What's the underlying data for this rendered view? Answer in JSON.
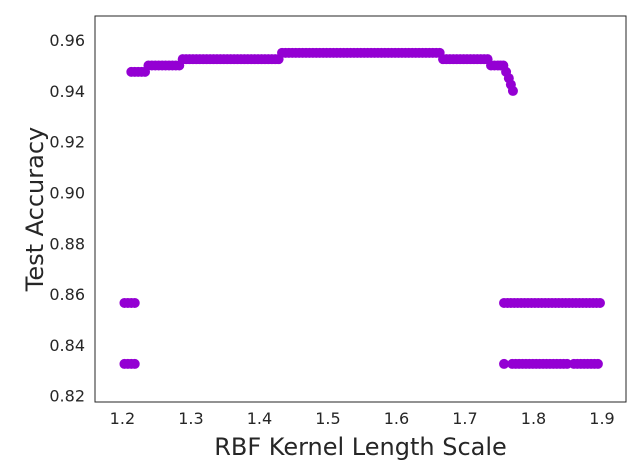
{
  "chart_data": {
    "type": "scatter",
    "title": "",
    "xlabel": "RBF Kernel Length Scale",
    "ylabel": "Test Accuracy",
    "xlim": [
      1.16,
      1.935
    ],
    "ylim": [
      0.8175,
      0.9695
    ],
    "xticks": [
      1.2,
      1.3,
      1.4,
      1.5,
      1.6,
      1.7,
      1.8,
      1.9
    ],
    "yticks": [
      0.82,
      0.84,
      0.86,
      0.88,
      0.9,
      0.92,
      0.94,
      0.96
    ],
    "xtick_labels": [
      "1.2",
      "1.3",
      "1.4",
      "1.5",
      "1.6",
      "1.7",
      "1.8",
      "1.9"
    ],
    "ytick_labels": [
      "0.82",
      "0.84",
      "0.86",
      "0.88",
      "0.90",
      "0.92",
      "0.94",
      "0.96"
    ],
    "grid": false,
    "marker_color": "#9400d3",
    "series": [
      {
        "x": [
          1.203,
          1.208,
          1.213,
          1.218,
          1.203,
          1.208,
          1.213,
          1.218,
          1.213,
          1.218,
          1.223,
          1.228,
          1.233,
          1.238,
          1.243,
          1.248,
          1.253,
          1.258,
          1.263,
          1.268,
          1.273,
          1.278,
          1.283,
          1.288,
          1.293,
          1.298,
          1.303,
          1.308,
          1.313,
          1.318,
          1.323,
          1.328,
          1.333,
          1.338,
          1.343,
          1.348,
          1.353,
          1.358,
          1.363,
          1.368,
          1.373,
          1.378,
          1.383,
          1.388,
          1.393,
          1.398,
          1.403,
          1.408,
          1.413,
          1.418,
          1.423,
          1.428,
          1.433,
          1.438,
          1.443,
          1.448,
          1.453,
          1.458,
          1.463,
          1.468,
          1.473,
          1.478,
          1.483,
          1.488,
          1.493,
          1.498,
          1.503,
          1.508,
          1.513,
          1.518,
          1.523,
          1.528,
          1.533,
          1.538,
          1.543,
          1.548,
          1.553,
          1.558,
          1.563,
          1.568,
          1.573,
          1.578,
          1.583,
          1.588,
          1.593,
          1.598,
          1.603,
          1.608,
          1.613,
          1.618,
          1.623,
          1.628,
          1.633,
          1.638,
          1.643,
          1.648,
          1.653,
          1.658,
          1.663,
          1.668,
          1.673,
          1.678,
          1.683,
          1.688,
          1.693,
          1.698,
          1.703,
          1.708,
          1.713,
          1.718,
          1.723,
          1.728,
          1.733,
          1.738,
          1.743,
          1.748,
          1.752,
          1.756,
          1.76,
          1.764,
          1.767,
          1.77,
          1.757,
          1.762,
          1.767,
          1.772,
          1.777,
          1.782,
          1.787,
          1.792,
          1.797,
          1.802,
          1.807,
          1.812,
          1.817,
          1.822,
          1.827,
          1.832,
          1.837,
          1.842,
          1.847,
          1.852,
          1.857,
          1.862,
          1.867,
          1.872,
          1.877,
          1.882,
          1.887,
          1.892,
          1.897,
          1.757,
          1.769,
          1.774,
          1.779,
          1.784,
          1.789,
          1.794,
          1.799,
          1.804,
          1.809,
          1.814,
          1.819,
          1.824,
          1.829,
          1.834,
          1.839,
          1.844,
          1.849,
          1.859,
          1.864,
          1.869,
          1.874,
          1.879,
          1.884,
          1.889,
          1.894
        ],
        "y": [
          0.8565,
          0.8565,
          0.8565,
          0.8565,
          0.8325,
          0.8325,
          0.8325,
          0.8325,
          0.9475,
          0.9475,
          0.9475,
          0.9475,
          0.9475,
          0.95,
          0.95,
          0.95,
          0.95,
          0.95,
          0.95,
          0.95,
          0.95,
          0.95,
          0.95,
          0.9525,
          0.9525,
          0.9525,
          0.9525,
          0.9525,
          0.9525,
          0.9525,
          0.9525,
          0.9525,
          0.9525,
          0.9525,
          0.9525,
          0.9525,
          0.9525,
          0.9525,
          0.9525,
          0.9525,
          0.9525,
          0.9525,
          0.9525,
          0.9525,
          0.9525,
          0.9525,
          0.9525,
          0.9525,
          0.9525,
          0.9525,
          0.9525,
          0.9525,
          0.955,
          0.955,
          0.955,
          0.955,
          0.955,
          0.955,
          0.955,
          0.955,
          0.955,
          0.955,
          0.955,
          0.955,
          0.955,
          0.955,
          0.955,
          0.955,
          0.955,
          0.955,
          0.955,
          0.955,
          0.955,
          0.955,
          0.955,
          0.955,
          0.955,
          0.955,
          0.955,
          0.955,
          0.955,
          0.955,
          0.955,
          0.955,
          0.955,
          0.955,
          0.955,
          0.955,
          0.955,
          0.955,
          0.955,
          0.955,
          0.955,
          0.955,
          0.955,
          0.955,
          0.955,
          0.955,
          0.955,
          0.9525,
          0.9525,
          0.9525,
          0.9525,
          0.9525,
          0.9525,
          0.9525,
          0.9525,
          0.9525,
          0.9525,
          0.9525,
          0.9525,
          0.9525,
          0.9525,
          0.95,
          0.95,
          0.95,
          0.95,
          0.95,
          0.9475,
          0.945,
          0.9425,
          0.94,
          0.8565,
          0.8565,
          0.8565,
          0.8565,
          0.8565,
          0.8565,
          0.8565,
          0.8565,
          0.8565,
          0.8565,
          0.8565,
          0.8565,
          0.8565,
          0.8565,
          0.8565,
          0.8565,
          0.8565,
          0.8565,
          0.8565,
          0.8565,
          0.8565,
          0.8565,
          0.8565,
          0.8565,
          0.8565,
          0.8565,
          0.8565,
          0.8565,
          0.8565,
          0.8325,
          0.8325,
          0.8325,
          0.8325,
          0.8325,
          0.8325,
          0.8325,
          0.8325,
          0.8325,
          0.8325,
          0.8325,
          0.8325,
          0.8325,
          0.8325,
          0.8325,
          0.8325,
          0.8325,
          0.8325,
          0.8325,
          0.8325,
          0.8325,
          0.8325,
          0.8325,
          0.8325,
          0.8325,
          0.8325
        ]
      }
    ]
  }
}
